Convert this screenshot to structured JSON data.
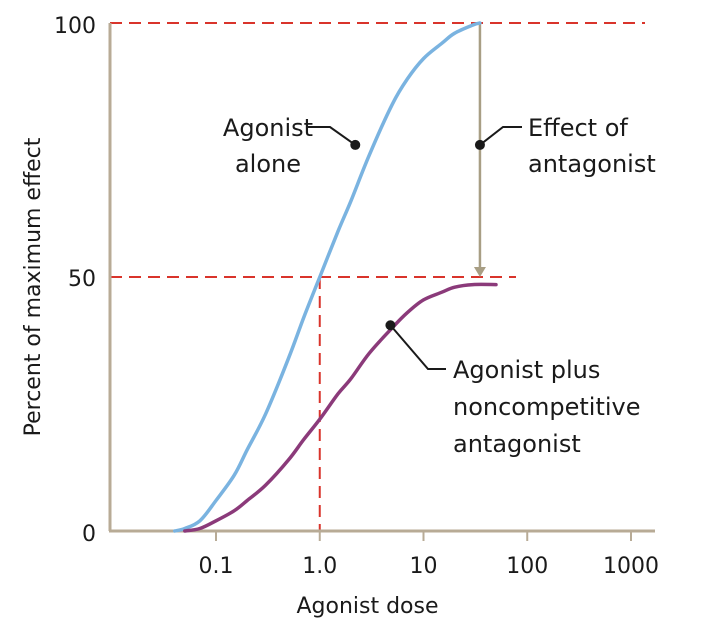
{
  "chart_data": {
    "type": "line",
    "title": "",
    "xlabel": "Agonist dose",
    "ylabel": "Percent of maximum effect",
    "x_scale": "log",
    "xlim": [
      0.01,
      1500
    ],
    "ylim": [
      0,
      100
    ],
    "x_ticks": [
      "0.1",
      "1.0",
      "10",
      "100",
      "1000"
    ],
    "y_ticks": [
      "0",
      "50",
      "100"
    ],
    "series": [
      {
        "id": "agonist-alone",
        "color": "#7ab3e0",
        "x": [
          0.04,
          0.05,
          0.07,
          0.1,
          0.15,
          0.2,
          0.3,
          0.5,
          0.7,
          1.0,
          1.5,
          2,
          3,
          5,
          7,
          10,
          15,
          20,
          30,
          35
        ],
        "y": [
          0,
          0.5,
          2,
          6,
          11,
          16,
          23,
          34,
          42,
          50,
          59,
          65,
          74,
          84,
          89,
          93,
          96,
          98,
          99.6,
          100
        ]
      },
      {
        "id": "agonist-plus-noncompetitive-antagonist",
        "color": "#8b3a7a",
        "x": [
          0.05,
          0.07,
          0.1,
          0.15,
          0.2,
          0.3,
          0.5,
          0.7,
          1.0,
          1.5,
          2,
          3,
          5,
          7,
          10,
          15,
          20,
          30,
          50
        ],
        "y": [
          0,
          0.5,
          2,
          4,
          6,
          9,
          14,
          18,
          22,
          27,
          30,
          35,
          40,
          43,
          45.5,
          47,
          48,
          48.5,
          48.5
        ]
      }
    ],
    "reference_lines": {
      "color": "#d9342b",
      "h100": 100,
      "h50": 50,
      "v_x": 1.0
    },
    "effect_arrow": {
      "x": 35,
      "from_y": 100,
      "to_y": 50,
      "color": "#a89e84"
    },
    "annotations": {
      "agonist_alone": {
        "lines": [
          "Agonist",
          "alone"
        ],
        "point": {
          "x": 2.2,
          "y": 76
        }
      },
      "effect_of_antagonist": {
        "lines": [
          "Effect of",
          "antagonist"
        ],
        "point": {
          "x": 35,
          "y": 76
        }
      },
      "agonist_plus": {
        "lines": [
          "Agonist plus",
          "noncompetitive",
          "antagonist"
        ],
        "point": {
          "x": 4.8,
          "y": 40.5
        }
      }
    },
    "axis_color": "#b8ab96",
    "grid": false
  }
}
